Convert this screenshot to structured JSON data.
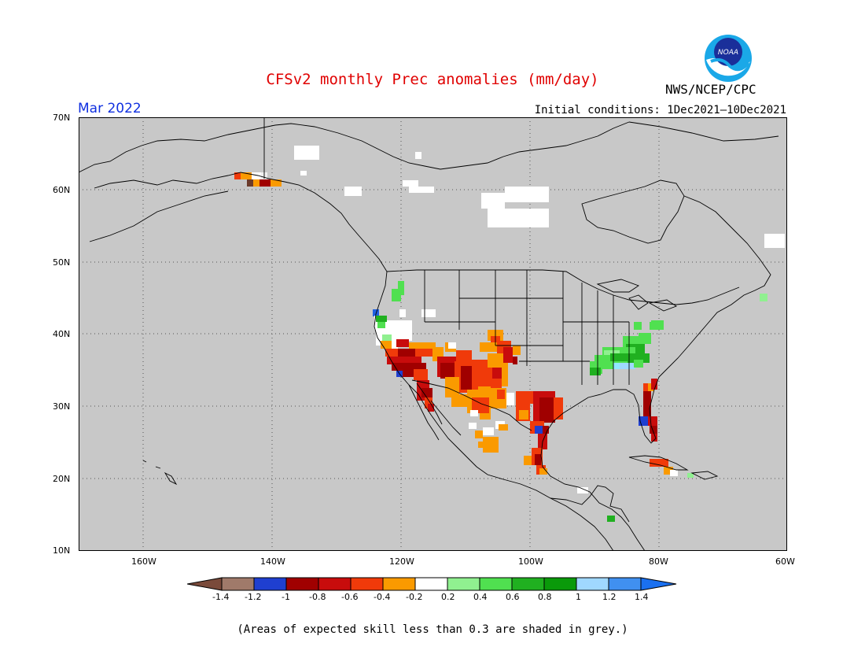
{
  "header": {
    "title": "CFSv2 monthly Prec anomalies (mm/day)",
    "agency": "NWS/NCEP/CPC",
    "logo_text": "NOAA",
    "period": "Mar 2022",
    "initial_conditions": "Initial conditions: 1Dec2021–10Dec2021"
  },
  "map": {
    "lat_labels": [
      "70N",
      "60N",
      "50N",
      "40N",
      "30N",
      "20N",
      "10N"
    ],
    "lon_labels": [
      "160W",
      "140W",
      "120W",
      "100W",
      "80W",
      "60W"
    ],
    "background_color": "#c8c8c8"
  },
  "colorbar": {
    "ticks": [
      "-1.4",
      "-1.2",
      "-1",
      "-0.8",
      "-0.6",
      "-0.4",
      "-0.2",
      "0.2",
      "0.4",
      "0.6",
      "0.8",
      "1",
      "1.2",
      "1.4"
    ],
    "colors": [
      "#7a4a3a",
      "#a07a6a",
      "#1f3fd0",
      "#a00000",
      "#c80c0c",
      "#f03a0a",
      "#fa9a00",
      "#ffffff",
      "#90f090",
      "#50e050",
      "#20b020",
      "#0a9a0a",
      "#a0d8ff",
      "#4090f0"
    ]
  },
  "footer": {
    "note": "(Areas of expected skill less than 0.3 are shaded in grey.)"
  }
}
